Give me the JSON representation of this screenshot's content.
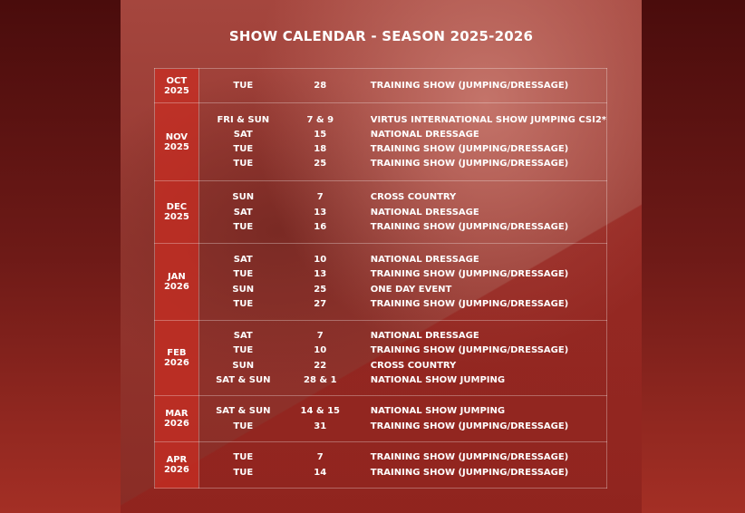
{
  "title": "SHOW CALENDAR - SEASON 2025-2026",
  "months": [
    {
      "month": "OCT 2025",
      "events": [
        {
          "day": "TUE",
          "date": "28",
          "name": "TRAINING SHOW (JUMPING/DRESSAGE)"
        }
      ]
    },
    {
      "month": "NOV 2025",
      "events": [
        {
          "day": "FRI & SUN",
          "date": "7 & 9",
          "name": "VIRTUS INTERNATIONAL SHOW JUMPING CSI2*"
        },
        {
          "day": "SAT",
          "date": "15",
          "name": "NATIONAL DRESSAGE"
        },
        {
          "day": "TUE",
          "date": "18",
          "name": "TRAINING SHOW (JUMPING/DRESSAGE)"
        },
        {
          "day": "TUE",
          "date": "25",
          "name": "TRAINING SHOW (JUMPING/DRESSAGE)"
        }
      ]
    },
    {
      "month": "DEC 2025",
      "events": [
        {
          "day": "SUN",
          "date": "7",
          "name": "CROSS COUNTRY"
        },
        {
          "day": "SAT",
          "date": "13",
          "name": "NATIONAL DRESSAGE"
        },
        {
          "day": "TUE",
          "date": "16",
          "name": "TRAINING SHOW (JUMPING/DRESSAGE)"
        }
      ]
    },
    {
      "month": "JAN 2026",
      "events": [
        {
          "day": "SAT",
          "date": "10",
          "name": "NATIONAL DRESSAGE"
        },
        {
          "day": "TUE",
          "date": "13",
          "name": "TRAINING SHOW (JUMPING/DRESSAGE)"
        },
        {
          "day": "SUN",
          "date": "25",
          "name": "ONE DAY EVENT"
        },
        {
          "day": "TUE",
          "date": "27",
          "name": "TRAINING SHOW (JUMPING/DRESSAGE)"
        }
      ]
    },
    {
      "month": "FEB 2026",
      "events": [
        {
          "day": "SAT",
          "date": "7",
          "name": "NATIONAL DRESSAGE"
        },
        {
          "day": "TUE",
          "date": "10",
          "name": "TRAINING SHOW (JUMPING/DRESSAGE)"
        },
        {
          "day": "SUN",
          "date": "22",
          "name": "CROSS COUNTRY"
        },
        {
          "day": "SAT & SUN",
          "date": "28 & 1",
          "name": "NATIONAL SHOW JUMPING"
        }
      ]
    },
    {
      "month": "MAR 2026",
      "events": [
        {
          "day": "SAT & SUN",
          "date": "14 & 15",
          "name": "NATIONAL SHOW JUMPING"
        },
        {
          "day": "TUE",
          "date": "31",
          "name": "TRAINING SHOW (JUMPING/DRESSAGE)"
        }
      ]
    },
    {
      "month": "APR 2026",
      "events": [
        {
          "day": "TUE",
          "date": "7",
          "name": "TRAINING SHOW (JUMPING/DRESSAGE)"
        },
        {
          "day": "TUE",
          "date": "14",
          "name": "TRAINING SHOW (JUMPING/DRESSAGE)"
        }
      ]
    }
  ]
}
